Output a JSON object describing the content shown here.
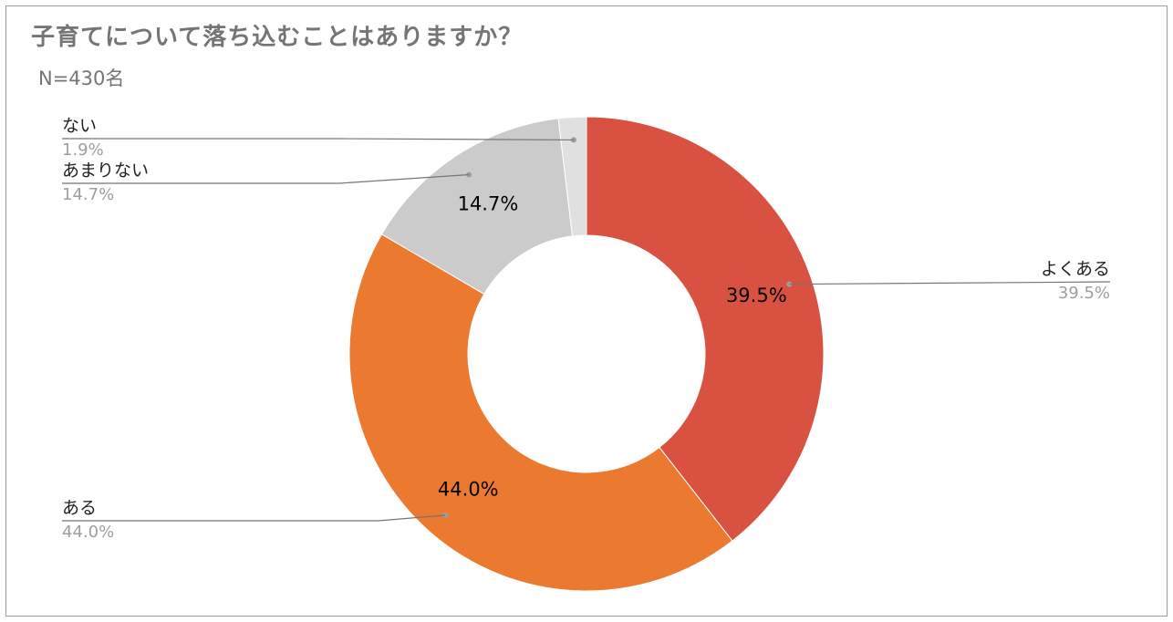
{
  "title": "子育てについて落ち込むことはありますか？",
  "subtitle": "N=430名",
  "colors": {
    "よくある": "#d95140",
    "ある": "#ec7930",
    "あまりない": "#cbcbcb",
    "ない": "#e0e0e0"
  },
  "chart_data": {
    "type": "pie",
    "donut": true,
    "title": "子育てについて落ち込むことはありますか？",
    "subtitle": "N=430名",
    "slices": [
      {
        "label": "よくある",
        "value": 39.5,
        "display": "39.5%"
      },
      {
        "label": "ある",
        "value": 44.0,
        "display": "44.0%"
      },
      {
        "label": "あまりない",
        "value": 14.7,
        "display": "14.7%"
      },
      {
        "label": "ない",
        "value": 1.9,
        "display": "1.9%"
      }
    ],
    "legend": "callout-labels"
  }
}
